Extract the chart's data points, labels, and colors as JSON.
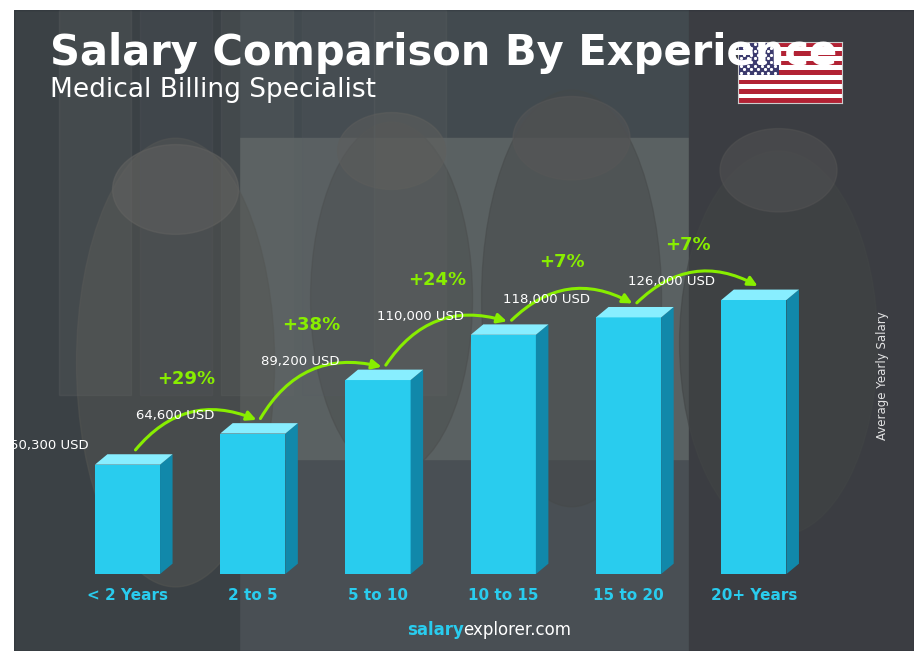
{
  "title": "Salary Comparison By Experience",
  "subtitle": "Medical Billing Specialist",
  "categories": [
    "< 2 Years",
    "2 to 5",
    "5 to 10",
    "10 to 15",
    "15 to 20",
    "20+ Years"
  ],
  "values": [
    50300,
    64600,
    89200,
    110000,
    118000,
    126000
  ],
  "salary_labels": [
    "50,300 USD",
    "64,600 USD",
    "89,200 USD",
    "110,000 USD",
    "118,000 USD",
    "126,000 USD"
  ],
  "pct_labels": [
    "+29%",
    "+38%",
    "+24%",
    "+7%",
    "+7%"
  ],
  "bar_color_face": "#29CCEE",
  "bar_color_right": "#1188AA",
  "bar_color_top": "#88EEFF",
  "bg_color": "#555a5a",
  "ylabel": "Average Yearly Salary",
  "footer_bold": "salary",
  "footer_normal": "explorer.com",
  "title_fontsize": 30,
  "subtitle_fontsize": 19,
  "arrow_color": "#88ee00",
  "pct_color": "#88ee00",
  "salary_label_color": "#ffffff",
  "xtick_color": "#29CCEE",
  "footer_color_bold": "#29CCEE",
  "footer_color_normal": "#ffffff"
}
